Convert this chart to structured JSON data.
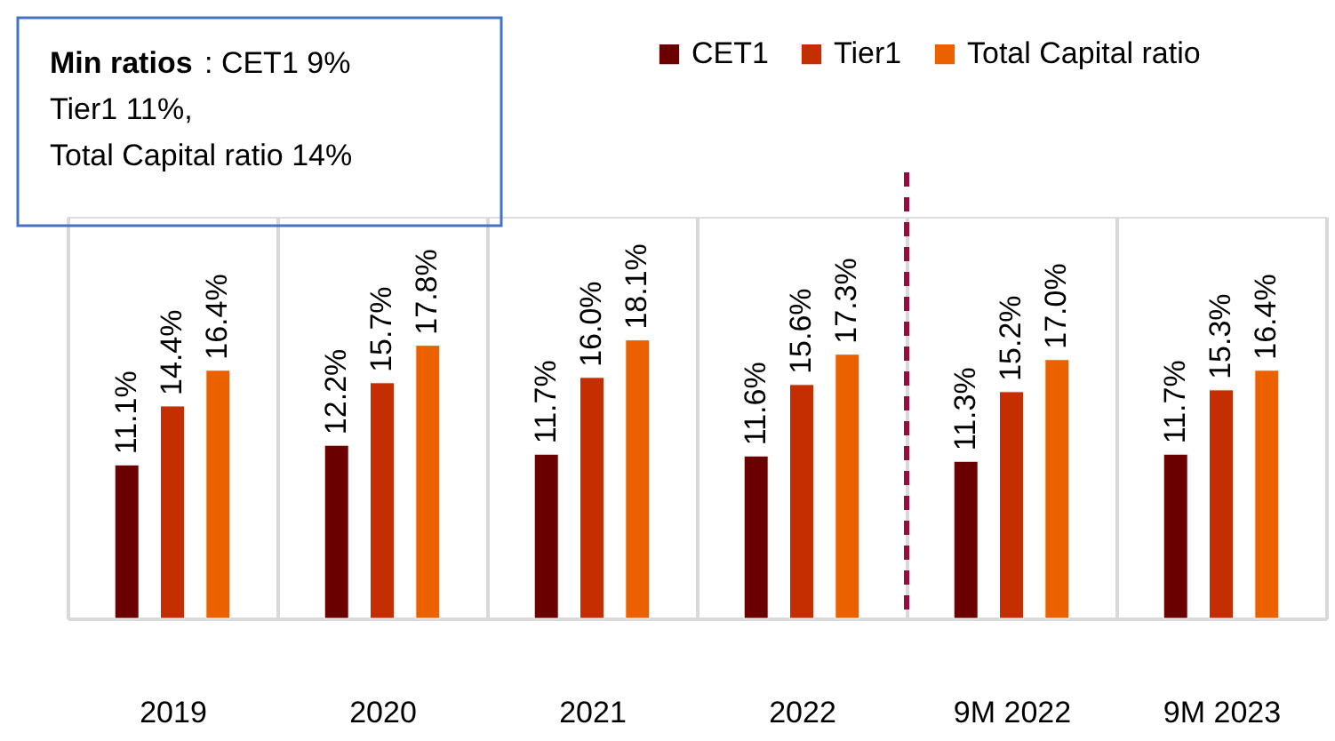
{
  "chart_data": {
    "type": "bar",
    "categories": [
      "2019",
      "2020",
      "2021",
      "2022",
      "9M 2022",
      "9M 2023"
    ],
    "series": [
      {
        "name": "CET1",
        "color": "#6b0000",
        "values": [
          11.1,
          12.2,
          11.7,
          11.6,
          11.3,
          11.7
        ],
        "value_labels": [
          "11.1%",
          "12.2%",
          "11.7%",
          "11.6%",
          "11.3%",
          "11.7%"
        ]
      },
      {
        "name": "Tier1",
        "color": "#c42e00",
        "values": [
          14.4,
          15.7,
          16.0,
          15.6,
          15.2,
          15.3
        ],
        "value_labels": [
          "14.4%",
          "15.7%",
          "16.0%",
          "15.6%",
          "15.2%",
          "15.3%"
        ]
      },
      {
        "name": "Total Capital ratio",
        "color": "#eb6100",
        "values": [
          16.4,
          17.8,
          18.1,
          17.3,
          17.0,
          16.4
        ],
        "value_labels": [
          "16.4%",
          "17.8%",
          "18.1%",
          "17.3%",
          "17.0%",
          "16.4%"
        ]
      }
    ],
    "ylim": [
      2.5,
      25
    ],
    "tick_labels": "x",
    "grid": "x",
    "legend": "top right",
    "ref_lines": [
      {
        "axis": "x",
        "value": "9M 2022",
        "color": "#9c0a3c",
        "line_style": "dashed"
      }
    ],
    "annotations": [
      "Min ratios : CET1 9%",
      "Tier1 11%,",
      "Total Capital ratio 14%"
    ]
  }
}
